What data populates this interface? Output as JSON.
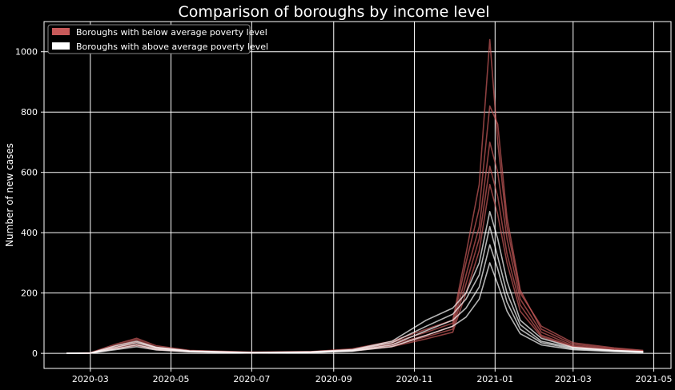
{
  "chart_data": {
    "type": "line",
    "title": "Comparison of boroughs by income level",
    "xlabel": "",
    "ylabel": "Number of new cases",
    "xlim": [
      "2020-01-26",
      "2021-05-14"
    ],
    "ylim": [
      -50,
      1100
    ],
    "x_ticks": [
      "2020-03",
      "2020-05",
      "2020-07",
      "2020-09",
      "2020-11",
      "2021-01",
      "2021-03",
      "2021-05"
    ],
    "y_ticks": [
      0,
      200,
      400,
      600,
      800,
      1000
    ],
    "grid": true,
    "legend_position": "top-left",
    "colors": {
      "below": "#c85a5a",
      "above": "#ffffff",
      "background": "#000000",
      "grid": "#ffffff"
    },
    "legend": [
      {
        "label": "Boroughs with below average poverty level",
        "color": "#c85a5a"
      },
      {
        "label": "Boroughs with above average poverty level",
        "color": "#ffffff"
      }
    ],
    "series": [
      {
        "group": "below",
        "x": [
          "2020-02-12",
          "2020-03-01",
          "2020-03-20",
          "2020-04-05",
          "2020-04-20",
          "2020-05-15",
          "2020-07-01",
          "2020-08-15",
          "2020-09-15",
          "2020-10-15",
          "2020-11-10",
          "2020-11-30",
          "2020-12-10",
          "2020-12-20",
          "2020-12-28",
          "2021-01-03",
          "2021-01-10",
          "2021-01-20",
          "2021-02-05",
          "2021-03-01",
          "2021-04-01",
          "2021-04-23"
        ],
        "values": [
          0,
          2,
          30,
          50,
          25,
          10,
          4,
          6,
          15,
          40,
          80,
          110,
          330,
          560,
          1040,
          700,
          420,
          200,
          90,
          35,
          18,
          10
        ]
      },
      {
        "group": "below",
        "x": [
          "2020-02-12",
          "2020-03-01",
          "2020-03-20",
          "2020-04-05",
          "2020-04-20",
          "2020-05-15",
          "2020-07-01",
          "2020-08-15",
          "2020-09-15",
          "2020-10-15",
          "2020-11-10",
          "2020-11-30",
          "2020-12-10",
          "2020-12-20",
          "2020-12-28",
          "2021-01-03",
          "2021-01-10",
          "2021-01-20",
          "2021-02-05",
          "2021-03-01",
          "2021-04-01",
          "2021-04-23"
        ],
        "values": [
          0,
          1,
          25,
          45,
          20,
          8,
          3,
          5,
          12,
          35,
          70,
          100,
          300,
          480,
          820,
          760,
          450,
          210,
          80,
          30,
          15,
          8
        ]
      },
      {
        "group": "below",
        "x": [
          "2020-02-12",
          "2020-03-01",
          "2020-03-20",
          "2020-04-05",
          "2020-04-20",
          "2020-05-15",
          "2020-07-01",
          "2020-08-15",
          "2020-09-15",
          "2020-10-15",
          "2020-11-10",
          "2020-11-30",
          "2020-12-10",
          "2020-12-20",
          "2020-12-28",
          "2021-01-03",
          "2021-01-10",
          "2021-01-20",
          "2021-02-05",
          "2021-03-01",
          "2021-04-01",
          "2021-04-23"
        ],
        "values": [
          0,
          1,
          20,
          38,
          18,
          7,
          2,
          4,
          10,
          30,
          60,
          90,
          260,
          420,
          700,
          600,
          380,
          180,
          70,
          25,
          12,
          6
        ]
      },
      {
        "group": "below",
        "x": [
          "2020-02-12",
          "2020-03-01",
          "2020-03-20",
          "2020-04-05",
          "2020-04-20",
          "2020-05-15",
          "2020-07-01",
          "2020-08-15",
          "2020-09-15",
          "2020-10-15",
          "2020-11-10",
          "2020-11-30",
          "2020-12-10",
          "2020-12-20",
          "2020-12-28",
          "2021-01-03",
          "2021-01-10",
          "2021-01-20",
          "2021-02-05",
          "2021-03-01",
          "2021-04-01",
          "2021-04-23"
        ],
        "values": [
          0,
          1,
          18,
          30,
          15,
          6,
          2,
          4,
          9,
          25,
          55,
          80,
          230,
          380,
          620,
          520,
          330,
          160,
          60,
          22,
          10,
          5
        ]
      },
      {
        "group": "below",
        "x": [
          "2020-02-12",
          "2020-03-01",
          "2020-03-20",
          "2020-04-05",
          "2020-04-20",
          "2020-05-15",
          "2020-07-01",
          "2020-08-15",
          "2020-09-15",
          "2020-10-15",
          "2020-11-10",
          "2020-11-30",
          "2020-12-10",
          "2020-12-20",
          "2020-12-28",
          "2021-01-03",
          "2021-01-10",
          "2021-01-20",
          "2021-02-05",
          "2021-03-01",
          "2021-04-01",
          "2021-04-23"
        ],
        "values": [
          0,
          1,
          15,
          26,
          12,
          5,
          2,
          3,
          8,
          22,
          48,
          70,
          200,
          340,
          560,
          460,
          300,
          140,
          55,
          20,
          9,
          5
        ]
      },
      {
        "group": "above",
        "x": [
          "2020-02-12",
          "2020-03-01",
          "2020-03-20",
          "2020-04-05",
          "2020-04-20",
          "2020-05-15",
          "2020-07-01",
          "2020-08-15",
          "2020-09-15",
          "2020-10-15",
          "2020-11-10",
          "2020-11-30",
          "2020-12-10",
          "2020-12-20",
          "2020-12-28",
          "2021-01-03",
          "2021-01-10",
          "2021-01-20",
          "2021-02-05",
          "2021-03-01",
          "2021-04-01",
          "2021-04-23"
        ],
        "values": [
          0,
          1,
          25,
          40,
          20,
          8,
          3,
          5,
          12,
          40,
          110,
          150,
          200,
          300,
          470,
          380,
          240,
          110,
          50,
          20,
          10,
          6
        ]
      },
      {
        "group": "above",
        "x": [
          "2020-02-12",
          "2020-03-01",
          "2020-03-20",
          "2020-04-05",
          "2020-04-20",
          "2020-05-15",
          "2020-07-01",
          "2020-08-15",
          "2020-09-15",
          "2020-10-15",
          "2020-11-10",
          "2020-11-30",
          "2020-12-10",
          "2020-12-20",
          "2020-12-28",
          "2021-01-03",
          "2021-01-10",
          "2021-01-20",
          "2021-02-05",
          "2021-03-01",
          "2021-04-01",
          "2021-04-23"
        ],
        "values": [
          0,
          1,
          20,
          35,
          18,
          7,
          2,
          4,
          10,
          35,
          90,
          130,
          180,
          260,
          420,
          320,
          200,
          95,
          40,
          18,
          9,
          5
        ]
      },
      {
        "group": "above",
        "x": [
          "2020-02-12",
          "2020-03-01",
          "2020-03-20",
          "2020-04-05",
          "2020-04-20",
          "2020-05-15",
          "2020-07-01",
          "2020-08-15",
          "2020-09-15",
          "2020-10-15",
          "2020-11-10",
          "2020-11-30",
          "2020-12-10",
          "2020-12-20",
          "2020-12-28",
          "2021-01-03",
          "2021-01-10",
          "2021-01-20",
          "2021-02-05",
          "2021-03-01",
          "2021-04-01",
          "2021-04-23"
        ],
        "values": [
          0,
          1,
          15,
          28,
          14,
          6,
          2,
          3,
          8,
          28,
          75,
          110,
          150,
          220,
          360,
          280,
          170,
          80,
          35,
          15,
          8,
          4
        ]
      },
      {
        "group": "above",
        "x": [
          "2020-02-12",
          "2020-03-01",
          "2020-03-20",
          "2020-04-05",
          "2020-04-20",
          "2020-05-15",
          "2020-07-01",
          "2020-08-15",
          "2020-09-15",
          "2020-10-15",
          "2020-11-10",
          "2020-11-30",
          "2020-12-10",
          "2020-12-20",
          "2020-12-28",
          "2021-01-03",
          "2021-01-10",
          "2021-01-20",
          "2021-02-05",
          "2021-03-01",
          "2021-04-01",
          "2021-04-23"
        ],
        "values": [
          0,
          1,
          12,
          22,
          11,
          5,
          2,
          3,
          7,
          22,
          60,
          90,
          120,
          180,
          300,
          230,
          140,
          65,
          28,
          12,
          6,
          3
        ]
      }
    ]
  }
}
